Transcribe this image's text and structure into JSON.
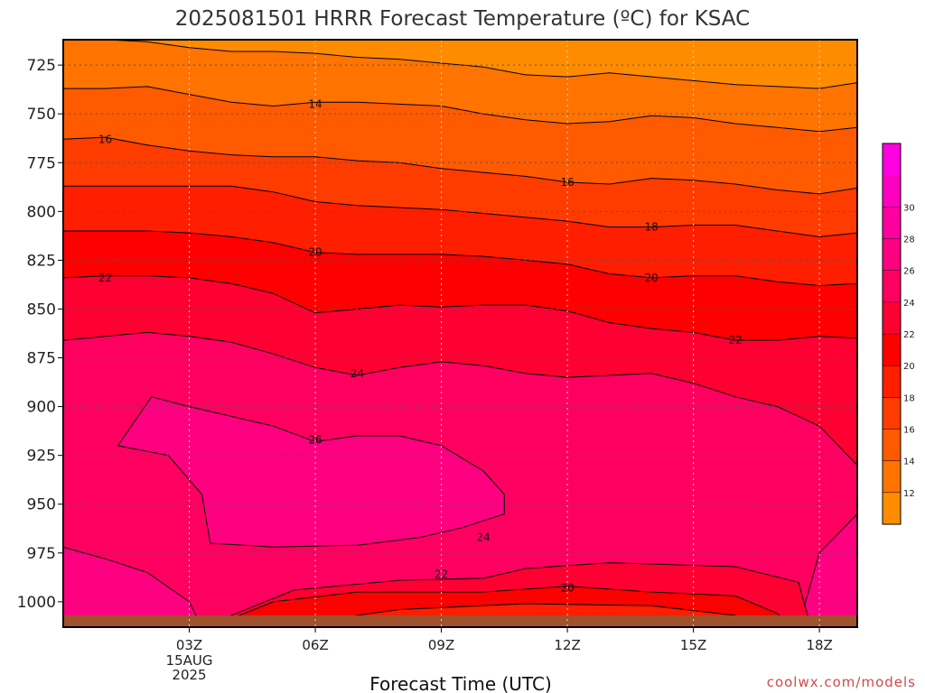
{
  "chart_data": {
    "type": "heatmap",
    "title": "2025081501 HRRR Forecast Temperature (ºC) for KSAC",
    "xlabel": "Forecast Time (UTC)",
    "ylabel": "",
    "y_axis": {
      "reversed": true,
      "ylim": [
        1013,
        712
      ],
      "ticks": [
        725,
        750,
        775,
        800,
        825,
        850,
        875,
        900,
        925,
        950,
        975,
        1000
      ],
      "grid": "dotted"
    },
    "x_axis": {
      "xlim": [
        0.0,
        18.9
      ],
      "ticks": [
        {
          "hour": 3,
          "label": "03Z",
          "sublabels": [
            "15AUG",
            "2025"
          ]
        },
        {
          "hour": 6,
          "label": "06Z",
          "sublabels": []
        },
        {
          "hour": 9,
          "label": "09Z",
          "sublabels": []
        },
        {
          "hour": 12,
          "label": "12Z",
          "sublabels": []
        },
        {
          "hour": 15,
          "label": "15Z",
          "sublabels": []
        },
        {
          "hour": 18,
          "label": "18Z",
          "sublabels": []
        }
      ],
      "grid": "dotted"
    },
    "colorbar": {
      "levels": [
        10,
        12,
        14,
        16,
        18,
        20,
        22,
        24,
        26,
        28,
        30,
        32
      ],
      "colors": [
        "#ff8c00",
        "#ff7300",
        "#ff5a00",
        "#ff3c00",
        "#ff1e00",
        "#ff0000",
        "#ff0033",
        "#ff0060",
        "#ff0080",
        "#ff00a0",
        "#ff00c0",
        "#ff00e0"
      ],
      "tick_labels": [
        "12",
        "14",
        "16",
        "18",
        "20",
        "22",
        "24",
        "26",
        "28",
        "30"
      ]
    },
    "hours": [
      0,
      1,
      2,
      3,
      4,
      5,
      6,
      7,
      8,
      9,
      10,
      11,
      12,
      13,
      14,
      15,
      16,
      17,
      18,
      18.9
    ],
    "isotherms": [
      {
        "temp": 12,
        "p": [
          712,
          712,
          713,
          716,
          718,
          718,
          719,
          721,
          722,
          724,
          726,
          730,
          731,
          729,
          731,
          733,
          735,
          736,
          737,
          734
        ]
      },
      {
        "temp": 14,
        "p": [
          737,
          737,
          736,
          740,
          744,
          746,
          744,
          744,
          745,
          746,
          750,
          753,
          755,
          754,
          751,
          752,
          755,
          757,
          759,
          757
        ]
      },
      {
        "temp": 16,
        "p": [
          763,
          762,
          766,
          769,
          771,
          772,
          772,
          774,
          775,
          778,
          780,
          782,
          785,
          786,
          783,
          784,
          786,
          789,
          791,
          788
        ]
      },
      {
        "temp": 18,
        "p": [
          787,
          787,
          787,
          787,
          787,
          790,
          795,
          797,
          798,
          799,
          801,
          803,
          805,
          808,
          808,
          807,
          807,
          810,
          813,
          811
        ]
      },
      {
        "temp": 20,
        "p": [
          810,
          810,
          810,
          811,
          813,
          816,
          821,
          822,
          822,
          822,
          823,
          825,
          827,
          832,
          834,
          833,
          833,
          836,
          838,
          837
        ]
      },
      {
        "temp": 22,
        "p": [
          834,
          833,
          833,
          834,
          837,
          842,
          852,
          850,
          848,
          849,
          848,
          848,
          851,
          857,
          860,
          862,
          866,
          866,
          864,
          865
        ]
      },
      {
        "temp": 24,
        "p": [
          866,
          864,
          862,
          864,
          867,
          873,
          880,
          884,
          880,
          877,
          879,
          883,
          885,
          884,
          883,
          888,
          895,
          900,
          910,
          930
        ]
      }
    ],
    "contour_labels": [
      {
        "text": "14",
        "hour": 6.0,
        "p": 745
      },
      {
        "text": "16",
        "hour": 1.0,
        "p": 763
      },
      {
        "text": "16",
        "hour": 12.0,
        "p": 785
      },
      {
        "text": "18",
        "hour": 14.0,
        "p": 808
      },
      {
        "text": "20",
        "hour": 6.0,
        "p": 821
      },
      {
        "text": "20",
        "hour": 14.0,
        "p": 834
      },
      {
        "text": "22",
        "hour": 1.0,
        "p": 834
      },
      {
        "text": "22",
        "hour": 16.0,
        "p": 866
      },
      {
        "text": "24",
        "hour": 7.0,
        "p": 883
      },
      {
        "text": "26",
        "hour": 6.0,
        "p": 917
      },
      {
        "text": "24",
        "hour": 10.0,
        "p": 967
      },
      {
        "text": "22",
        "hour": 9.0,
        "p": 986
      },
      {
        "text": "20",
        "hour": 12.0,
        "p": 993
      }
    ]
  },
  "credit": "coolwx.com/models"
}
